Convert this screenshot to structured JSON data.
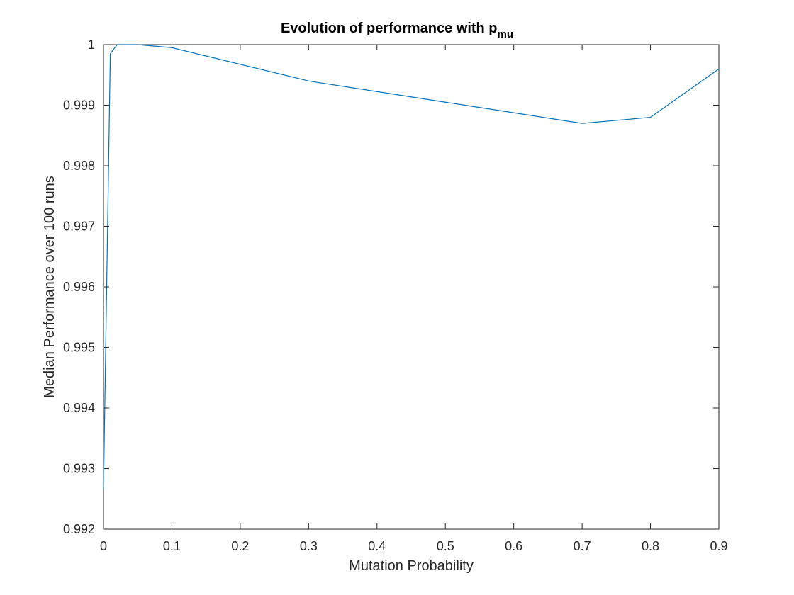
{
  "chart_data": {
    "type": "line",
    "title": "Evolution of performance with p",
    "title_subscript": "mu",
    "xlabel": "Mutation Probability",
    "ylabel": "Median Performance over 100 runs",
    "xlim": [
      0,
      0.9
    ],
    "ylim": [
      0.992,
      1
    ],
    "x_ticks": [
      0,
      0.1,
      0.2,
      0.3,
      0.4,
      0.5,
      0.6,
      0.7,
      0.8,
      0.9
    ],
    "x_tick_labels": [
      "0",
      "0.1",
      "0.2",
      "0.3",
      "0.4",
      "0.5",
      "0.6",
      "0.7",
      "0.8",
      "0.9"
    ],
    "y_ticks": [
      0.992,
      0.993,
      0.994,
      0.995,
      0.996,
      0.997,
      0.998,
      0.999,
      1
    ],
    "y_tick_labels": [
      "0.992",
      "0.993",
      "0.994",
      "0.995",
      "0.996",
      "0.997",
      "0.998",
      "0.999",
      "1"
    ],
    "grid": false,
    "box": true,
    "line_color": "#0072BD",
    "series": [
      {
        "x": [
          0,
          0.01,
          0.02,
          0.05,
          0.1,
          0.3,
          0.5,
          0.7,
          0.8,
          0.9
        ],
        "y": [
          0.99265,
          0.99985,
          1.0,
          1.0,
          0.99995,
          0.9994,
          0.99905,
          0.9987,
          0.9988,
          0.9996
        ]
      }
    ]
  }
}
